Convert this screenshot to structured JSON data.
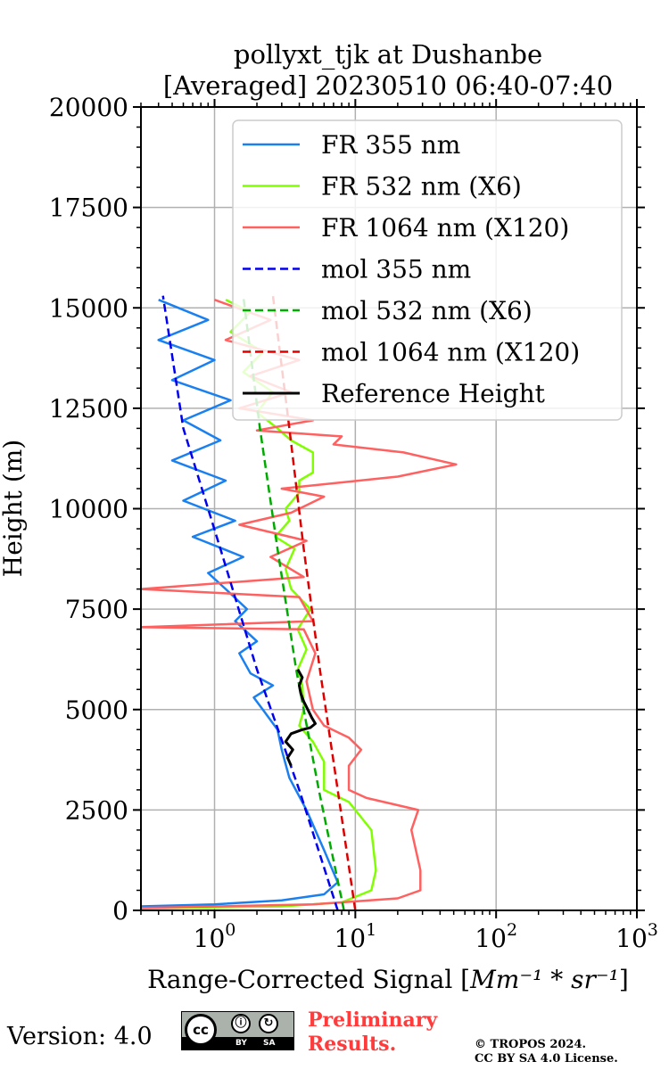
{
  "chart_data": {
    "type": "line",
    "title_line1": "pollyxt_tjk at Dushanbe",
    "title_line2": "[Averaged] 20230510 06:40-07:40",
    "xlabel": "Range-Corrected Signal [",
    "xlabel_unit": "Mm⁻¹ * sr⁻¹",
    "xlabel_close": "]",
    "ylabel": "Height (m)",
    "xscale": "log",
    "xlim": [
      0.3,
      1000
    ],
    "ylim": [
      0,
      20000
    ],
    "grid": true,
    "legend_position": "top-right",
    "x_ticks": [
      {
        "value": 1,
        "base": "10",
        "exp": "0"
      },
      {
        "value": 10,
        "base": "10",
        "exp": "1"
      },
      {
        "value": 100,
        "base": "10",
        "exp": "2"
      },
      {
        "value": 1000,
        "base": "10",
        "exp": "3"
      }
    ],
    "y_ticks": [
      0,
      2500,
      5000,
      7500,
      10000,
      12500,
      15000,
      17500,
      20000
    ],
    "y_tick_labels": [
      "0",
      "2500",
      "5000",
      "7500",
      "10000",
      "12500",
      "15000",
      "17500",
      "20000"
    ],
    "series": [
      {
        "name": "FR 355 nm",
        "color": "#1a80f0",
        "style": "solid",
        "points": [
          [
            0.3,
            100
          ],
          [
            1,
            150
          ],
          [
            3,
            250
          ],
          [
            6,
            400
          ],
          [
            7.5,
            700
          ],
          [
            6,
            1500
          ],
          [
            4.5,
            2500
          ],
          [
            3.4,
            3300
          ],
          [
            3.0,
            4000
          ],
          [
            2.8,
            4500
          ],
          [
            2.2,
            5000
          ],
          [
            1.9,
            5300
          ],
          [
            2.6,
            5600
          ],
          [
            1.8,
            5900
          ],
          [
            1.5,
            6400
          ],
          [
            2.0,
            6700
          ],
          [
            1.4,
            7200
          ],
          [
            1.7,
            7500
          ],
          [
            1.2,
            8000
          ],
          [
            0.9,
            8400
          ],
          [
            1.6,
            8800
          ],
          [
            0.7,
            9300
          ],
          [
            1.4,
            9700
          ],
          [
            0.6,
            10200
          ],
          [
            1.2,
            10700
          ],
          [
            0.5,
            11200
          ],
          [
            1.1,
            11700
          ],
          [
            0.6,
            12200
          ],
          [
            1.3,
            12700
          ],
          [
            0.5,
            13200
          ],
          [
            1.0,
            13700
          ],
          [
            0.4,
            14200
          ],
          [
            0.9,
            14700
          ],
          [
            0.4,
            15200
          ]
        ]
      },
      {
        "name": "FR 532 nm (X6)",
        "color": "#80ff00",
        "style": "solid",
        "points": [
          [
            0.3,
            50
          ],
          [
            3,
            100
          ],
          [
            8,
            200
          ],
          [
            13,
            500
          ],
          [
            14,
            1000
          ],
          [
            13,
            2000
          ],
          [
            9,
            2700
          ],
          [
            6,
            3000
          ],
          [
            6,
            3700
          ],
          [
            5,
            4200
          ],
          [
            4,
            4600
          ],
          [
            4.3,
            5000
          ],
          [
            4.2,
            5600
          ],
          [
            3.9,
            6000
          ],
          [
            4.5,
            6500
          ],
          [
            3.9,
            7000
          ],
          [
            4.8,
            7500
          ],
          [
            3.5,
            8000
          ],
          [
            3.2,
            8500
          ],
          [
            3.7,
            9000
          ],
          [
            2.7,
            9300
          ],
          [
            3.4,
            9700
          ],
          [
            3.2,
            10000
          ],
          [
            4.0,
            10400
          ],
          [
            4.0,
            10700
          ],
          [
            5.0,
            10900
          ],
          [
            5.0,
            11400
          ],
          [
            3.5,
            11700
          ],
          [
            2.8,
            12000
          ],
          [
            2.0,
            12400
          ],
          [
            2.6,
            12900
          ],
          [
            1.6,
            13400
          ],
          [
            2.2,
            13900
          ],
          [
            1.3,
            14400
          ],
          [
            1.8,
            14900
          ],
          [
            1.2,
            15200
          ]
        ]
      },
      {
        "name": "FR 1064 nm (X120)",
        "color": "#ff6060",
        "style": "solid",
        "points": [
          [
            0.3,
            60
          ],
          [
            5,
            150
          ],
          [
            20,
            300
          ],
          [
            29,
            500
          ],
          [
            29,
            1000
          ],
          [
            25,
            2000
          ],
          [
            28,
            2500
          ],
          [
            12,
            2800
          ],
          [
            9,
            3000
          ],
          [
            9,
            3600
          ],
          [
            11,
            4000
          ],
          [
            9,
            4300
          ],
          [
            6,
            4600
          ],
          [
            5,
            5000
          ],
          [
            4.5,
            5700
          ],
          [
            5.2,
            6400
          ],
          [
            4.3,
            7000
          ],
          [
            0.3,
            7050
          ],
          [
            5,
            7200
          ],
          [
            4,
            7800
          ],
          [
            0.3,
            8000
          ],
          [
            4.3,
            8300
          ],
          [
            2.5,
            8800
          ],
          [
            4.5,
            9200
          ],
          [
            1.5,
            9600
          ],
          [
            3.5,
            9900
          ],
          [
            6,
            10300
          ],
          [
            3,
            10500
          ],
          [
            20,
            10800
          ],
          [
            52,
            11100
          ],
          [
            22,
            11400
          ],
          [
            7,
            11600
          ],
          [
            8,
            11800
          ],
          [
            2,
            11950
          ],
          [
            5,
            12200
          ],
          [
            1.5,
            12500
          ],
          [
            3.5,
            12900
          ],
          [
            1.8,
            13300
          ],
          [
            4,
            13700
          ],
          [
            1.2,
            14200
          ],
          [
            2.5,
            14700
          ],
          [
            1.0,
            15200
          ]
        ]
      },
      {
        "name": "mol 355 nm",
        "color": "#0000ee",
        "style": "dashed",
        "points": [
          [
            7.5,
            0
          ],
          [
            4.0,
            3000
          ],
          [
            2.0,
            6000
          ],
          [
            1.1,
            9000
          ],
          [
            0.6,
            12000
          ],
          [
            0.43,
            15300
          ]
        ]
      },
      {
        "name": "mol 532 nm (X6)",
        "color": "#00aa00",
        "style": "dashed",
        "points": [
          [
            8.3,
            0
          ],
          [
            5.5,
            3000
          ],
          [
            3.8,
            6000
          ],
          [
            2.8,
            9000
          ],
          [
            2.1,
            12000
          ],
          [
            1.6,
            15300
          ]
        ]
      },
      {
        "name": "mol 1064 nm (X120)",
        "color": "#dd0000",
        "style": "dashed",
        "points": [
          [
            10,
            0
          ],
          [
            7.5,
            3000
          ],
          [
            5.6,
            6000
          ],
          [
            4.3,
            9000
          ],
          [
            3.4,
            12000
          ],
          [
            2.6,
            15300
          ]
        ]
      },
      {
        "name": "Reference Height",
        "color": "#000000",
        "style": "solid",
        "points": [
          [
            3.5,
            3600
          ],
          [
            3.3,
            3800
          ],
          [
            3.6,
            4000
          ],
          [
            3.2,
            4200
          ],
          [
            3.5,
            4400
          ],
          [
            4.2,
            4500
          ],
          [
            4.8,
            4550
          ],
          [
            5.2,
            4650
          ],
          [
            4.9,
            4800
          ],
          [
            4.6,
            5000
          ],
          [
            4.3,
            5200
          ],
          [
            4.1,
            5400
          ],
          [
            4.0,
            5600
          ],
          [
            4.2,
            5800
          ],
          [
            3.9,
            6000
          ]
        ]
      }
    ]
  },
  "footer": {
    "version": "Version: 4.0",
    "cc_badge": {
      "circle": "cc",
      "sub1": "ⓘ",
      "sub2": "↻",
      "tag1": "BY",
      "tag2": "SA"
    },
    "preliminary_line1": "Preliminary",
    "preliminary_line2": "Results.",
    "copyright_line1": "© TROPOS 2024.",
    "copyright_line2": "CC BY SA 4.0 License."
  }
}
